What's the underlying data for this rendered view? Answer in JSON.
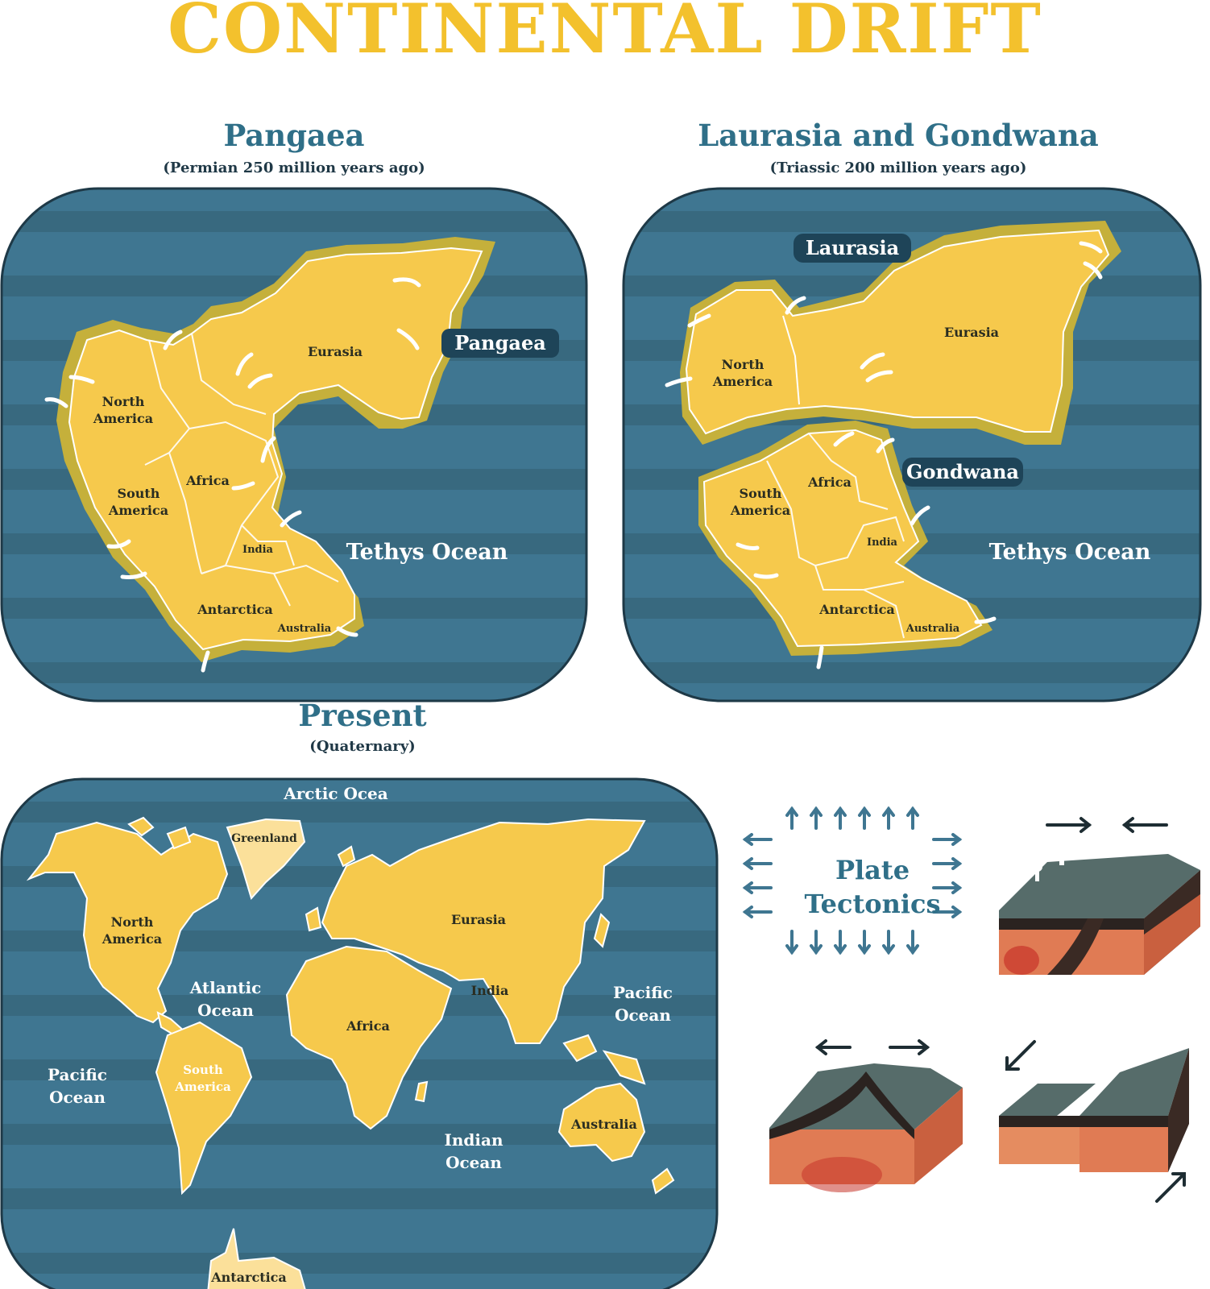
{
  "title": "CONTINENTAL DRIFT",
  "colors": {
    "title": "#f3c12d",
    "ocean": "#3f7691",
    "ocean_stripe": "#38697f",
    "land": "#f6c94c",
    "land_shadow": "#c5b03b",
    "heading": "#2f6f88",
    "tag_bg": "#1e4458"
  },
  "panels": {
    "pangaea": {
      "heading": "Pangaea",
      "subheading": "(Permian 250 million years ago)",
      "tag": "Pangaea",
      "ocean": "Tethys Ocean",
      "labels": {
        "north_america_1": "North",
        "north_america_2": "America",
        "south_america_1": "South",
        "south_america_2": "America",
        "africa": "Africa",
        "eurasia": "Eurasia",
        "india": "India",
        "antarctica": "Antarctica",
        "australia": "Australia"
      }
    },
    "laurasia": {
      "heading": "Laurasia and Gondwana",
      "subheading": "(Triassic 200 million years ago)",
      "tag_laurasia": "Laurasia",
      "tag_gondwana": "Gondwana",
      "ocean": "Tethys Ocean",
      "labels": {
        "north_america_1": "North",
        "north_america_2": "America",
        "south_america_1": "South",
        "south_america_2": "America",
        "africa": "Africa",
        "eurasia": "Eurasia",
        "india": "India",
        "antarctica": "Antarctica",
        "australia": "Australia"
      }
    },
    "present": {
      "heading": "Present",
      "subheading": "(Quaternary)",
      "labels": {
        "arctic": "Arctic Ocea",
        "greenland": "Greenland",
        "north_america_1": "North",
        "north_america_2": "America",
        "eurasia": "Eurasia",
        "atlantic_1": "Atlantic",
        "atlantic_2": "Ocean",
        "india": "India",
        "pacific_right_1": "Pacific",
        "pacific_right_2": "Ocean",
        "africa": "Africa",
        "pacific_left_1": "Pacific",
        "pacific_left_2": "Ocean",
        "south_america_1": "South",
        "south_america_2": "America",
        "australia": "Australia",
        "indian_1": "Indian",
        "indian_2": "Ocean",
        "antarctica": "Antarctica"
      }
    }
  },
  "plate_tectonics": {
    "line1": "Plate",
    "line2": "Tectonics"
  }
}
